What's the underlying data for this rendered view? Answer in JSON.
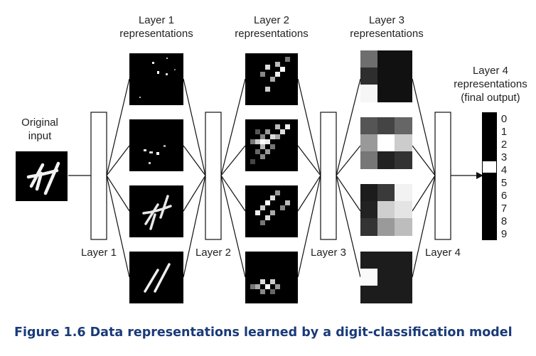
{
  "original_input": {
    "title": "Original\ninput",
    "digit": "4"
  },
  "layers": [
    {
      "label": "Layer 1",
      "representations_title": "Layer 1\nrepresentations"
    },
    {
      "label": "Layer 2",
      "representations_title": "Layer 2\nrepresentations"
    },
    {
      "label": "Layer 3",
      "representations_title": "Layer 3\nrepresentations"
    },
    {
      "label": "Layer 4",
      "representations_title": "Layer 4\nrepresentations\n(final output)"
    }
  ],
  "final_output": {
    "classes": [
      "0",
      "1",
      "2",
      "3",
      "4",
      "5",
      "6",
      "7",
      "8",
      "9"
    ],
    "active_class": "4"
  },
  "caption": "Figure 1.6 Data representations learned by a digit-classification model",
  "colors": {
    "line": "#111111",
    "panel": "#000000",
    "caption": "#1a3a78"
  }
}
